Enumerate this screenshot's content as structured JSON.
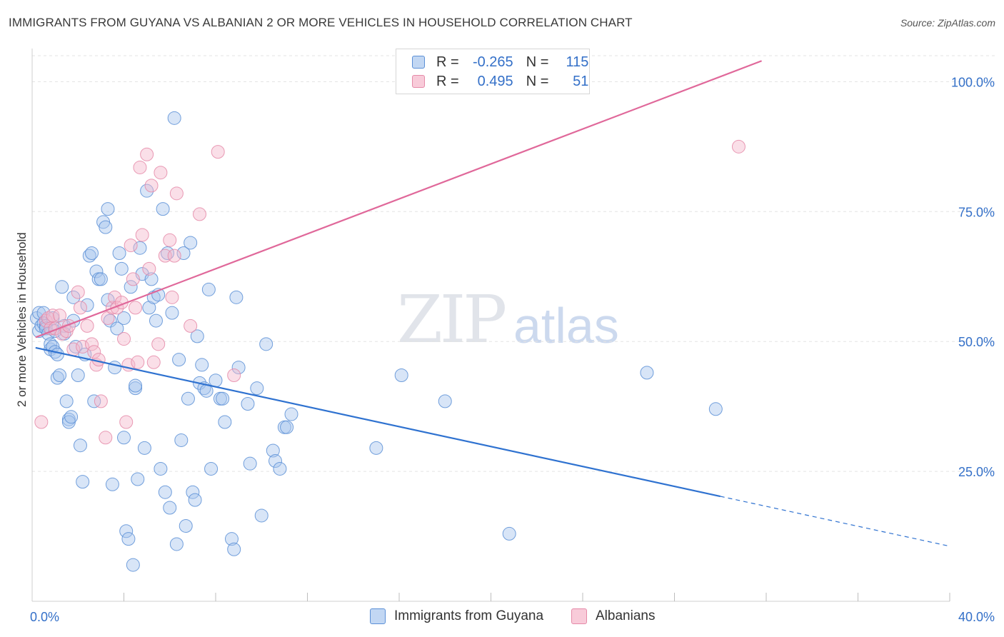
{
  "header": {
    "title": "IMMIGRANTS FROM GUYANA VS ALBANIAN 2 OR MORE VEHICLES IN HOUSEHOLD CORRELATION CHART",
    "source": "Source: ZipAtlas.com"
  },
  "watermark": {
    "zip": "ZIP",
    "atlas": "atlas"
  },
  "stats_legend": {
    "r_label": "R =",
    "n_label": "N =",
    "rows": [
      {
        "r": "-0.265",
        "n": "115"
      },
      {
        "r": "0.495",
        "n": "51"
      }
    ]
  },
  "bottom_legend": {
    "items": [
      "Immigrants from Guyana",
      "Albanians"
    ]
  },
  "colors": {
    "guyana_fill": "#a9c6ee",
    "guyana_stroke": "#5b8fd6",
    "guyana_line": "#2f72d0",
    "albanian_fill": "#f5b9cc",
    "albanian_stroke": "#e58aa8",
    "albanian_line": "#e0689a",
    "tick_label": "#3470c8",
    "grid": "#e3e3e3"
  },
  "chart_data": {
    "type": "scatter",
    "title": "IMMIGRANTS FROM GUYANA VS ALBANIAN 2 OR MORE VEHICLES IN HOUSEHOLD CORRELATION CHART",
    "xlabel": "",
    "ylabel": "2 or more Vehicles in Household",
    "xlim": [
      0,
      40
    ],
    "ylim": [
      0,
      105
    ],
    "x_tick_labels": [
      "0.0%",
      "40.0%"
    ],
    "y_ticks": [
      25,
      50,
      75,
      100
    ],
    "y_tick_labels": [
      "25.0%",
      "50.0%",
      "75.0%",
      "100.0%"
    ],
    "grid": "horizontal dashed",
    "legend_position": "top-center",
    "series": [
      {
        "name": "Immigrants from Guyana",
        "r": -0.265,
        "n": 115,
        "trend": {
          "x": [
            0.15,
            30.0
          ],
          "y": [
            48.8,
            20.2
          ],
          "dashed_to": [
            40.0,
            10.6
          ]
        },
        "points": [
          [
            0.2,
            54.5
          ],
          [
            0.3,
            52.0
          ],
          [
            0.3,
            55.5
          ],
          [
            0.4,
            53.0
          ],
          [
            0.5,
            55.5
          ],
          [
            0.5,
            53.5
          ],
          [
            0.6,
            53.0
          ],
          [
            0.6,
            52.5
          ],
          [
            0.7,
            51.5
          ],
          [
            0.8,
            48.5
          ],
          [
            0.8,
            49.5
          ],
          [
            0.9,
            49.0
          ],
          [
            0.9,
            54.5
          ],
          [
            1.0,
            52.0
          ],
          [
            1.0,
            48.0
          ],
          [
            1.1,
            47.5
          ],
          [
            1.1,
            43.0
          ],
          [
            1.2,
            43.5
          ],
          [
            1.3,
            60.5
          ],
          [
            1.4,
            53.0
          ],
          [
            1.4,
            51.5
          ],
          [
            1.5,
            38.5
          ],
          [
            1.6,
            35.0
          ],
          [
            1.6,
            34.5
          ],
          [
            1.7,
            35.5
          ],
          [
            1.8,
            58.5
          ],
          [
            1.8,
            54.0
          ],
          [
            1.9,
            49.0
          ],
          [
            2.0,
            43.5
          ],
          [
            2.1,
            30.0
          ],
          [
            2.2,
            23.0
          ],
          [
            2.3,
            47.5
          ],
          [
            2.4,
            57.0
          ],
          [
            2.5,
            66.5
          ],
          [
            2.6,
            67.0
          ],
          [
            2.7,
            38.5
          ],
          [
            2.8,
            63.5
          ],
          [
            2.9,
            62.0
          ],
          [
            3.0,
            62.0
          ],
          [
            3.1,
            73.0
          ],
          [
            3.2,
            72.0
          ],
          [
            3.3,
            75.5
          ],
          [
            3.3,
            58.0
          ],
          [
            3.4,
            54.0
          ],
          [
            3.5,
            22.5
          ],
          [
            3.6,
            45.0
          ],
          [
            3.7,
            52.5
          ],
          [
            3.8,
            67.0
          ],
          [
            3.9,
            64.0
          ],
          [
            4.0,
            54.5
          ],
          [
            4.0,
            31.5
          ],
          [
            4.1,
            13.5
          ],
          [
            4.2,
            12.0
          ],
          [
            4.3,
            60.5
          ],
          [
            4.4,
            7.0
          ],
          [
            4.5,
            41.0
          ],
          [
            4.5,
            41.5
          ],
          [
            4.6,
            23.5
          ],
          [
            4.7,
            68.0
          ],
          [
            4.8,
            63.0
          ],
          [
            4.9,
            29.5
          ],
          [
            5.0,
            79.0
          ],
          [
            5.1,
            56.5
          ],
          [
            5.2,
            62.0
          ],
          [
            5.3,
            58.5
          ],
          [
            5.4,
            54.0
          ],
          [
            5.5,
            59.0
          ],
          [
            5.6,
            25.5
          ],
          [
            5.7,
            75.5
          ],
          [
            5.8,
            21.0
          ],
          [
            5.9,
            67.0
          ],
          [
            6.0,
            18.0
          ],
          [
            6.1,
            55.5
          ],
          [
            6.2,
            93.0
          ],
          [
            6.3,
            11.0
          ],
          [
            6.4,
            46.5
          ],
          [
            6.5,
            31.0
          ],
          [
            6.6,
            67.0
          ],
          [
            6.7,
            14.5
          ],
          [
            6.8,
            39.0
          ],
          [
            6.9,
            69.0
          ],
          [
            7.0,
            21.0
          ],
          [
            7.1,
            19.5
          ],
          [
            7.2,
            51.0
          ],
          [
            7.3,
            42.0
          ],
          [
            7.4,
            45.5
          ],
          [
            7.5,
            41.0
          ],
          [
            7.6,
            40.5
          ],
          [
            7.7,
            60.0
          ],
          [
            7.8,
            25.5
          ],
          [
            8.0,
            42.5
          ],
          [
            8.2,
            39.0
          ],
          [
            8.3,
            39.0
          ],
          [
            8.4,
            34.5
          ],
          [
            8.7,
            12.0
          ],
          [
            8.8,
            10.0
          ],
          [
            8.9,
            58.5
          ],
          [
            9.0,
            45.0
          ],
          [
            9.4,
            38.0
          ],
          [
            9.5,
            26.5
          ],
          [
            9.8,
            41.0
          ],
          [
            10.0,
            16.5
          ],
          [
            10.2,
            49.5
          ],
          [
            10.5,
            29.0
          ],
          [
            10.6,
            27.0
          ],
          [
            10.8,
            25.5
          ],
          [
            11.0,
            33.5
          ],
          [
            11.1,
            33.5
          ],
          [
            11.3,
            36.0
          ],
          [
            15.0,
            29.5
          ],
          [
            16.1,
            43.5
          ],
          [
            18.0,
            38.5
          ],
          [
            20.8,
            13.0
          ],
          [
            26.8,
            44.0
          ],
          [
            29.8,
            37.0
          ]
        ]
      },
      {
        "name": "Albanians",
        "r": 0.495,
        "n": 51,
        "trend": {
          "x": [
            0.15,
            31.8
          ],
          "y": [
            50.8,
            104.0
          ]
        },
        "points": [
          [
            0.4,
            34.5
          ],
          [
            0.6,
            54.0
          ],
          [
            0.7,
            54.5
          ],
          [
            0.8,
            52.5
          ],
          [
            0.9,
            55.0
          ],
          [
            1.0,
            52.5
          ],
          [
            1.2,
            55.0
          ],
          [
            1.3,
            51.5
          ],
          [
            1.5,
            52.0
          ],
          [
            1.6,
            53.0
          ],
          [
            1.8,
            48.5
          ],
          [
            2.0,
            59.5
          ],
          [
            2.1,
            56.5
          ],
          [
            2.2,
            49.0
          ],
          [
            2.4,
            53.0
          ],
          [
            2.6,
            49.5
          ],
          [
            2.7,
            48.0
          ],
          [
            2.8,
            45.5
          ],
          [
            2.9,
            46.5
          ],
          [
            3.0,
            38.5
          ],
          [
            3.2,
            31.5
          ],
          [
            3.3,
            54.5
          ],
          [
            3.5,
            56.5
          ],
          [
            3.6,
            58.5
          ],
          [
            3.7,
            56.5
          ],
          [
            3.9,
            57.5
          ],
          [
            4.0,
            50.5
          ],
          [
            4.1,
            34.5
          ],
          [
            4.2,
            45.5
          ],
          [
            4.3,
            68.5
          ],
          [
            4.4,
            62.0
          ],
          [
            4.5,
            56.5
          ],
          [
            4.6,
            46.0
          ],
          [
            4.7,
            83.5
          ],
          [
            4.8,
            70.5
          ],
          [
            5.0,
            86.0
          ],
          [
            5.1,
            64.0
          ],
          [
            5.2,
            80.0
          ],
          [
            5.3,
            46.0
          ],
          [
            5.5,
            49.5
          ],
          [
            5.6,
            82.5
          ],
          [
            5.8,
            66.5
          ],
          [
            6.0,
            69.5
          ],
          [
            6.1,
            58.5
          ],
          [
            6.2,
            66.5
          ],
          [
            6.3,
            78.5
          ],
          [
            6.9,
            53.0
          ],
          [
            7.3,
            74.5
          ],
          [
            8.1,
            86.5
          ],
          [
            8.8,
            43.5
          ],
          [
            30.8,
            87.5
          ]
        ]
      }
    ]
  }
}
